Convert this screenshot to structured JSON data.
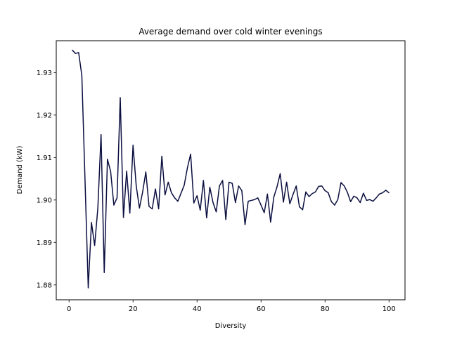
{
  "chart_data": {
    "type": "line",
    "title": "Average demand over cold winter evenings",
    "xlabel": "Diversity",
    "ylabel": "Demand (kW)",
    "xlim": [
      -4,
      105
    ],
    "ylim": [
      1.8765,
      1.9375
    ],
    "xticks": [
      0,
      20,
      40,
      60,
      80,
      100
    ],
    "yticks": [
      1.88,
      1.89,
      1.9,
      1.91,
      1.92,
      1.93
    ],
    "ytick_labels": [
      "1.88",
      "1.89",
      "1.90",
      "1.91",
      "1.92",
      "1.93"
    ],
    "grid": false,
    "line_color": "#0b0f3f",
    "series": [
      {
        "x": [
          1,
          2,
          3,
          4,
          5,
          6,
          7,
          8,
          9,
          10,
          11,
          12,
          13,
          14,
          15,
          16,
          17,
          18,
          19,
          20,
          21,
          22,
          23,
          24,
          25,
          26,
          27,
          28,
          29,
          30,
          31,
          32,
          33,
          34,
          35,
          36,
          37,
          38,
          39,
          40,
          41,
          42,
          43,
          44,
          45,
          46,
          47,
          48,
          49,
          50,
          51,
          52,
          53,
          54,
          55,
          56,
          57,
          58,
          59,
          60,
          61,
          62,
          63,
          64,
          65,
          66,
          67,
          68,
          69,
          70,
          71,
          72,
          73,
          74,
          75,
          76,
          77,
          78,
          79,
          80,
          81,
          82,
          83,
          84,
          85,
          86,
          87,
          88,
          89,
          90,
          91,
          92,
          93,
          94,
          95,
          96,
          97,
          98,
          99,
          100
        ],
        "values": [
          1.9353,
          1.9345,
          1.9347,
          1.9293,
          1.9045,
          1.8793,
          1.8947,
          1.8893,
          1.8981,
          1.9154,
          1.8829,
          1.9096,
          1.9067,
          1.8988,
          1.9005,
          1.9241,
          1.8959,
          1.9068,
          1.8969,
          1.9129,
          1.9033,
          1.8981,
          1.9019,
          1.9066,
          1.8985,
          1.8979,
          1.9026,
          1.8979,
          1.9103,
          1.9012,
          1.9042,
          1.9017,
          1.9005,
          1.8997,
          1.9016,
          1.9035,
          1.9076,
          1.9108,
          1.8993,
          1.901,
          1.8976,
          1.9046,
          1.8958,
          1.903,
          1.8994,
          1.8972,
          1.9033,
          1.9046,
          1.8954,
          1.9042,
          1.9039,
          1.8994,
          1.9033,
          1.9022,
          1.8942,
          1.8997,
          1.8999,
          1.9001,
          1.9005,
          1.8988,
          1.897,
          1.9014,
          1.8948,
          1.9007,
          1.9031,
          1.9062,
          1.8995,
          1.9042,
          1.8991,
          1.9013,
          1.9033,
          1.8984,
          1.8977,
          1.9019,
          1.9008,
          1.9015,
          1.9019,
          1.9032,
          1.9033,
          1.9022,
          1.9017,
          1.8996,
          1.8988,
          1.9001,
          1.9041,
          1.9033,
          1.9018,
          1.8996,
          1.9009,
          1.9005,
          1.8994,
          1.9016,
          1.8999,
          1.9001,
          1.8997,
          1.9005,
          1.9014,
          1.9017,
          1.9023,
          1.9017
        ]
      }
    ]
  }
}
